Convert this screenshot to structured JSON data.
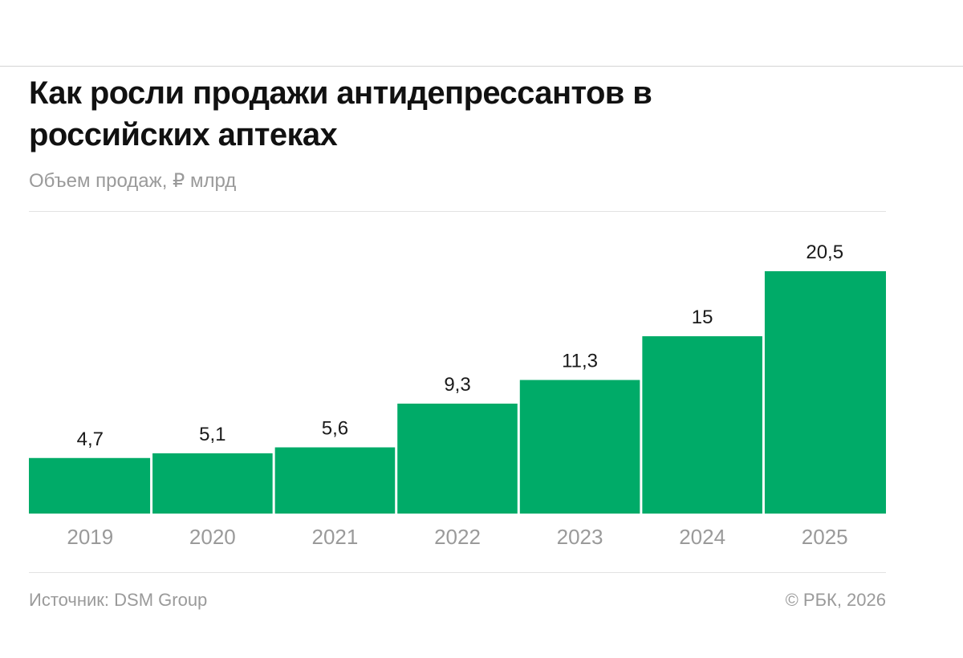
{
  "title": "Как росли продажи антидепрессантов в российских аптеках",
  "subtitle": "Объем продаж, ₽ млрд",
  "footer": {
    "source": "Источник: DSM Group",
    "copyright": "© РБК, 2026"
  },
  "colors": {
    "bar": "#00ab68",
    "value_label": "#1a1a1a",
    "axis_label": "#9a9a9a"
  },
  "chart_data": {
    "type": "bar",
    "title": "Как росли продажи антидепрессантов в российских аптеках",
    "subtitle": "Объем продаж, ₽ млрд",
    "ylabel": "",
    "xlabel": "",
    "categories": [
      "2019",
      "2020",
      "2021",
      "2022",
      "2023",
      "2024",
      "2025"
    ],
    "values": [
      4.7,
      5.1,
      5.6,
      9.3,
      11.3,
      15,
      20.5
    ],
    "value_labels": [
      "4,7",
      "5,1",
      "5,6",
      "9,3",
      "11,3",
      "15",
      "20,5"
    ],
    "ylim": [
      0,
      20.5
    ],
    "grid": false,
    "legend": "none"
  }
}
